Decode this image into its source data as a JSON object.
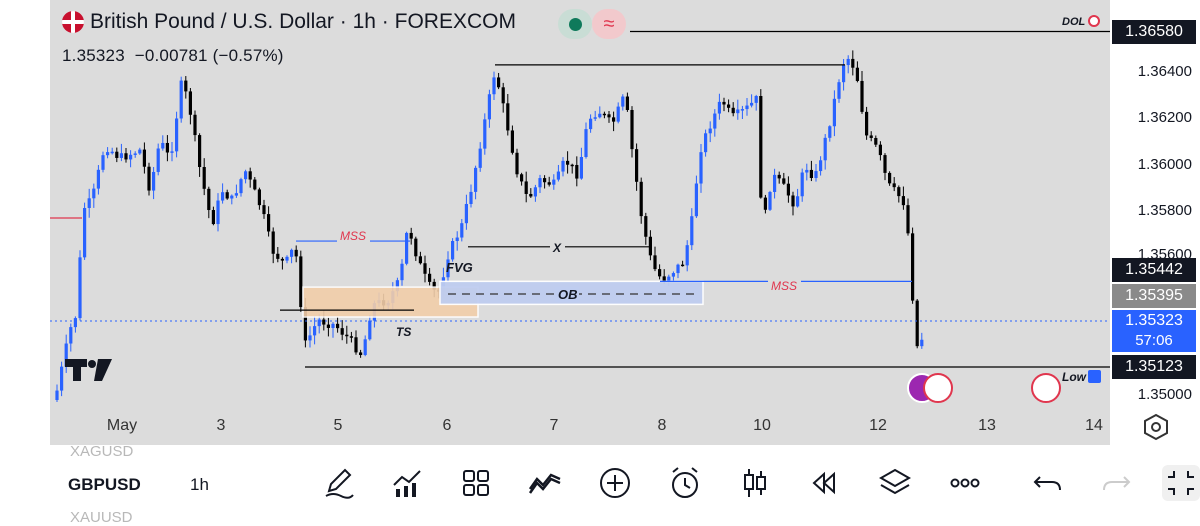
{
  "header": {
    "title": "British Pound / U.S. Dollar · 1h · FOREXCOM",
    "price": "1.35323",
    "change": "−0.00781 (−0.57%)"
  },
  "chart_data": {
    "type": "candlestick",
    "symbol": "GBPUSD",
    "interval": "1h",
    "ylim": [
      1.3495,
      1.3665
    ],
    "y_ticks": [
      "1.36400",
      "1.36200",
      "1.36000",
      "1.35800",
      "1.35600",
      "1.35000"
    ],
    "x_ticks": [
      "May",
      "3",
      "5",
      "6",
      "7",
      "8",
      "10",
      "12",
      "13",
      "14"
    ],
    "price_badges": [
      {
        "value": "1.36580",
        "style": "dark"
      },
      {
        "value": "1.35442",
        "style": "dark"
      },
      {
        "value": "1.35395",
        "style": "grey"
      },
      {
        "value": "1.35323",
        "sub": "57:06",
        "style": "blue"
      },
      {
        "value": "1.35123",
        "style": "dark"
      }
    ],
    "annotations": {
      "dol": "DOL",
      "mss_left": "MSS",
      "mss_right": "MSS",
      "fvg": "FVG",
      "ob": "OB",
      "x": "X",
      "ts": "TS",
      "low_label": "Low"
    },
    "levels": {
      "dol": 1.3658,
      "top_high": 1.36435,
      "x_level": 1.35645,
      "mss_left": 1.3567,
      "mss_right": 1.35495,
      "ts": 1.3537,
      "low": 1.35123,
      "current": 1.35323
    },
    "zones": {
      "fvg": [
        1.3547,
        1.3534
      ],
      "ob": [
        1.35495,
        1.35395
      ]
    },
    "colors": {
      "up": "#2962ff",
      "down": "#000000",
      "fvg_fill": "#f2ceaa",
      "ob_fill": "#bfcdf0",
      "mss_text": "#e0364e"
    },
    "candles_summary": "approx. 190 hourly candles from ~May 1 to May 12"
  },
  "toolbar": {
    "symbol": "GBPUSD",
    "interval": "1h",
    "prev_symbol": "XAGUSD",
    "next_symbol": "XAUUSD",
    "icons": [
      "pencil-icon",
      "indicators-icon",
      "layout-icon",
      "patterns-icon",
      "plus-icon",
      "alarm-icon",
      "candle-type-icon",
      "replay-icon",
      "layers-icon",
      "more-icon",
      "undo-icon",
      "redo-icon",
      "fullscreen-icon"
    ]
  }
}
